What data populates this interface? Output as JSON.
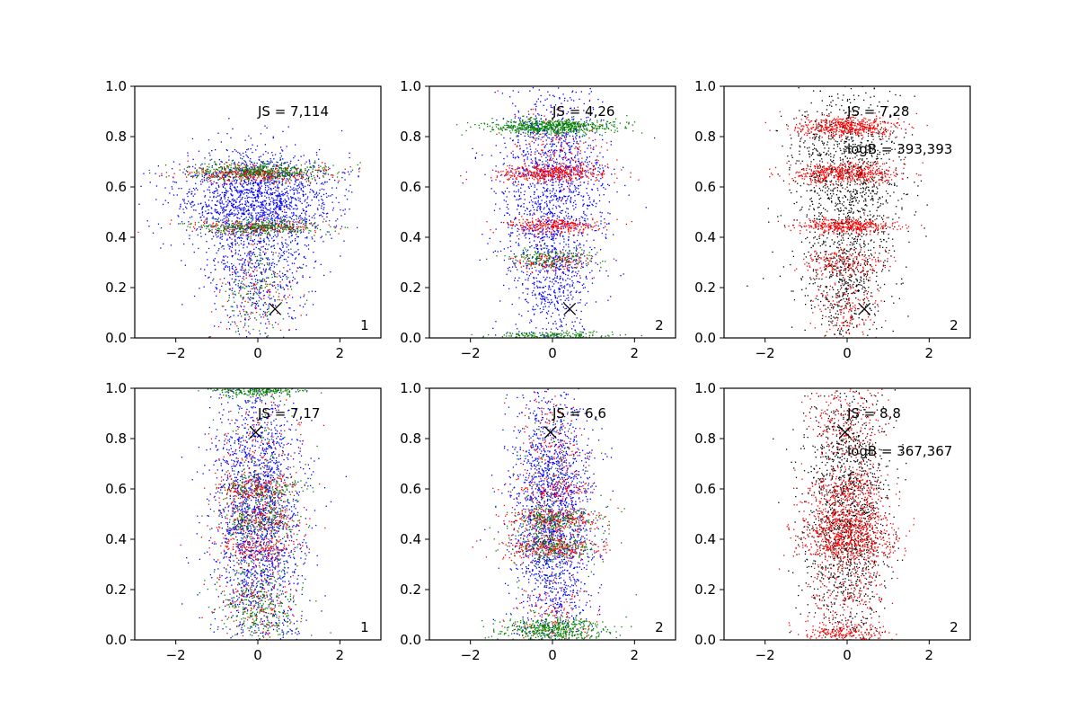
{
  "figure": {
    "background": "#ffffff"
  },
  "chart_data": [
    {
      "type": "scatter",
      "title": "",
      "xlabel": "",
      "ylabel": "",
      "xlim": [
        -3,
        3
      ],
      "ylim": [
        0,
        1
      ],
      "xticks": [
        -2,
        0,
        2
      ],
      "yticks": [
        0.0,
        0.2,
        0.4,
        0.6,
        0.8,
        1.0
      ],
      "xtick_labels": [
        "−2",
        "0",
        "2"
      ],
      "ytick_labels": [
        "0.0",
        "0.2",
        "0.4",
        "0.6",
        "0.8",
        "1.0"
      ],
      "annotation_js": "JS = 7,114",
      "annotation_logb": "",
      "panel_number": "1",
      "marker": {
        "x": 0.42,
        "y": 0.115,
        "symbol": "×"
      },
      "series": [
        {
          "color": "#0000ff",
          "points": 2200,
          "clusters": [
            {
              "y": 0.57,
              "sy": 0.09,
              "sx": 0.95,
              "w": 3
            },
            {
              "y": 0.45,
              "sy": 0.12,
              "sx": 0.9,
              "w": 1
            },
            {
              "y": 0.25,
              "sy": 0.12,
              "sx": 0.6,
              "w": 1
            }
          ]
        },
        {
          "color": "#ff0000",
          "points": 700,
          "clusters": [
            {
              "y": 0.65,
              "sy": 0.018,
              "sx": 0.85,
              "w": 3
            },
            {
              "y": 0.44,
              "sy": 0.015,
              "sx": 0.75,
              "w": 2
            },
            {
              "y": 0.2,
              "sy": 0.1,
              "sx": 0.5,
              "w": 1
            }
          ]
        },
        {
          "color": "#008000",
          "points": 900,
          "clusters": [
            {
              "y": 0.66,
              "sy": 0.018,
              "sx": 0.85,
              "w": 3
            },
            {
              "y": 0.44,
              "sy": 0.015,
              "sx": 0.75,
              "w": 2
            },
            {
              "y": 0.2,
              "sy": 0.1,
              "sx": 0.5,
              "w": 1
            }
          ]
        }
      ]
    },
    {
      "type": "scatter",
      "title": "",
      "xlabel": "",
      "ylabel": "",
      "xlim": [
        -3,
        3
      ],
      "ylim": [
        0,
        1
      ],
      "xticks": [
        -2,
        0,
        2
      ],
      "yticks": [
        0.0,
        0.2,
        0.4,
        0.6,
        0.8,
        1.0
      ],
      "xtick_labels": [
        "−2",
        "0",
        "2"
      ],
      "ytick_labels": [
        "0.0",
        "0.2",
        "0.4",
        "0.6",
        "0.8",
        "1.0"
      ],
      "annotation_js": "JS = 4,26",
      "annotation_logb": "",
      "panel_number": "2",
      "marker": {
        "x": 0.42,
        "y": 0.115,
        "symbol": "×"
      },
      "series": [
        {
          "color": "#0000ff",
          "points": 1800,
          "clusters": [
            {
              "y": 0.6,
              "sy": 0.2,
              "sx": 0.65,
              "w": 3
            },
            {
              "y": 0.2,
              "sy": 0.12,
              "sx": 0.5,
              "w": 1
            }
          ]
        },
        {
          "color": "#ff0000",
          "points": 1000,
          "clusters": [
            {
              "y": 0.655,
              "sy": 0.018,
              "sx": 0.65,
              "w": 3
            },
            {
              "y": 0.445,
              "sy": 0.015,
              "sx": 0.55,
              "w": 2
            },
            {
              "y": 0.3,
              "sy": 0.02,
              "sx": 0.5,
              "w": 1
            },
            {
              "y": 0.75,
              "sy": 0.08,
              "sx": 0.6,
              "w": 1
            }
          ]
        },
        {
          "color": "#008000",
          "points": 1000,
          "clusters": [
            {
              "y": 0.84,
              "sy": 0.015,
              "sx": 0.8,
              "w": 4
            },
            {
              "y": 0.32,
              "sy": 0.02,
              "sx": 0.5,
              "w": 1
            },
            {
              "y": 0.01,
              "sy": 0.008,
              "sx": 0.7,
              "w": 1
            }
          ]
        }
      ]
    },
    {
      "type": "scatter",
      "title": "",
      "xlabel": "",
      "ylabel": "",
      "xlim": [
        -3,
        3
      ],
      "ylim": [
        0,
        1
      ],
      "xticks": [
        -2,
        0,
        2
      ],
      "yticks": [
        0.0,
        0.2,
        0.4,
        0.6,
        0.8,
        1.0
      ],
      "xtick_labels": [
        "−2",
        "0",
        "2"
      ],
      "ytick_labels": [
        "0.0",
        "0.2",
        "0.4",
        "0.6",
        "0.8",
        "1.0"
      ],
      "annotation_js": "JS = 7,28",
      "annotation_logb": "logB = 393,393",
      "panel_number": "2",
      "marker": {
        "x": 0.42,
        "y": 0.115,
        "symbol": "×"
      },
      "series": [
        {
          "color": "#000000",
          "points": 1600,
          "clusters": [
            {
              "y": 0.62,
              "sy": 0.2,
              "sx": 0.7,
              "w": 3
            },
            {
              "y": 0.2,
              "sy": 0.12,
              "sx": 0.5,
              "w": 1
            }
          ]
        },
        {
          "color": "#ff0000",
          "points": 1700,
          "clusters": [
            {
              "y": 0.84,
              "sy": 0.02,
              "sx": 0.65,
              "w": 3
            },
            {
              "y": 0.655,
              "sy": 0.02,
              "sx": 0.65,
              "w": 3
            },
            {
              "y": 0.445,
              "sy": 0.015,
              "sx": 0.55,
              "w": 2
            },
            {
              "y": 0.3,
              "sy": 0.03,
              "sx": 0.5,
              "w": 1
            },
            {
              "y": 0.1,
              "sy": 0.08,
              "sx": 0.4,
              "w": 1
            }
          ]
        }
      ]
    },
    {
      "type": "scatter",
      "title": "",
      "xlabel": "",
      "ylabel": "",
      "xlim": [
        -3,
        3
      ],
      "ylim": [
        0,
        1
      ],
      "xticks": [
        -2,
        0,
        2
      ],
      "yticks": [
        0.0,
        0.2,
        0.4,
        0.6,
        0.8,
        1.0
      ],
      "xtick_labels": [
        "−2",
        "0",
        "2"
      ],
      "ytick_labels": [
        "0.0",
        "0.2",
        "0.4",
        "0.6",
        "0.8",
        "1.0"
      ],
      "annotation_js": "JS = 7,17",
      "annotation_logb": "",
      "panel_number": "1",
      "marker": {
        "x": -0.05,
        "y": 0.825,
        "symbol": "×"
      },
      "series": [
        {
          "color": "#0000ff",
          "points": 2000,
          "clusters": [
            {
              "y": 0.5,
              "sy": 0.28,
              "sx": 0.55,
              "w": 1
            }
          ]
        },
        {
          "color": "#ff0000",
          "points": 900,
          "clusters": [
            {
              "y": 0.6,
              "sy": 0.03,
              "sx": 0.5,
              "w": 1
            },
            {
              "y": 0.48,
              "sy": 0.03,
              "sx": 0.5,
              "w": 1
            },
            {
              "y": 0.37,
              "sy": 0.03,
              "sx": 0.5,
              "w": 1
            },
            {
              "y": 0.7,
              "sy": 0.15,
              "sx": 0.5,
              "w": 1
            },
            {
              "y": 0.15,
              "sy": 0.1,
              "sx": 0.5,
              "w": 1
            }
          ]
        },
        {
          "color": "#008000",
          "points": 1000,
          "clusters": [
            {
              "y": 0.99,
              "sy": 0.012,
              "sx": 0.55,
              "w": 2
            },
            {
              "y": 0.6,
              "sy": 0.03,
              "sx": 0.5,
              "w": 1
            },
            {
              "y": 0.48,
              "sy": 0.03,
              "sx": 0.5,
              "w": 1
            },
            {
              "y": 0.1,
              "sy": 0.08,
              "sx": 0.5,
              "w": 2
            },
            {
              "y": 0.45,
              "sy": 0.25,
              "sx": 0.5,
              "w": 2
            }
          ]
        }
      ]
    },
    {
      "type": "scatter",
      "title": "",
      "xlabel": "",
      "ylabel": "",
      "xlim": [
        -3,
        3
      ],
      "ylim": [
        0,
        1
      ],
      "xticks": [
        -2,
        0,
        2
      ],
      "yticks": [
        0.0,
        0.2,
        0.4,
        0.6,
        0.8,
        1.0
      ],
      "xtick_labels": [
        "−2",
        "0",
        "2"
      ],
      "ytick_labels": [
        "0.0",
        "0.2",
        "0.4",
        "0.6",
        "0.8",
        "1.0"
      ],
      "annotation_js": "JS = 6,6",
      "annotation_logb": "",
      "panel_number": "2",
      "marker": {
        "x": -0.05,
        "y": 0.825,
        "symbol": "×"
      },
      "series": [
        {
          "color": "#0000ff",
          "points": 1900,
          "clusters": [
            {
              "y": 0.5,
              "sy": 0.28,
              "sx": 0.5,
              "w": 1
            }
          ]
        },
        {
          "color": "#ff0000",
          "points": 1000,
          "clusters": [
            {
              "y": 0.6,
              "sy": 0.03,
              "sx": 0.5,
              "w": 1
            },
            {
              "y": 0.48,
              "sy": 0.025,
              "sx": 0.55,
              "w": 2
            },
            {
              "y": 0.37,
              "sy": 0.025,
              "sx": 0.55,
              "w": 2
            },
            {
              "y": 0.8,
              "sy": 0.1,
              "sx": 0.45,
              "w": 1
            },
            {
              "y": 0.1,
              "sy": 0.08,
              "sx": 0.5,
              "w": 1
            }
          ]
        },
        {
          "color": "#008000",
          "points": 1000,
          "clusters": [
            {
              "y": 0.04,
              "sy": 0.025,
              "sx": 0.65,
              "w": 3
            },
            {
              "y": 0.48,
              "sy": 0.025,
              "sx": 0.55,
              "w": 1
            },
            {
              "y": 0.37,
              "sy": 0.025,
              "sx": 0.55,
              "w": 1
            },
            {
              "y": 0.5,
              "sy": 0.25,
              "sx": 0.5,
              "w": 1
            }
          ]
        }
      ]
    },
    {
      "type": "scatter",
      "title": "",
      "xlabel": "",
      "ylabel": "",
      "xlim": [
        -3,
        3
      ],
      "ylim": [
        0,
        1
      ],
      "xticks": [
        -2,
        0,
        2
      ],
      "yticks": [
        0.0,
        0.2,
        0.4,
        0.6,
        0.8,
        1.0
      ],
      "xtick_labels": [
        "−2",
        "0",
        "2"
      ],
      "ytick_labels": [
        "0.0",
        "0.2",
        "0.4",
        "0.6",
        "0.8",
        "1.0"
      ],
      "annotation_js": "JS = 8,8",
      "annotation_logb": "logB = 367,367",
      "panel_number": "2",
      "marker": {
        "x": -0.05,
        "y": 0.825,
        "symbol": "×"
      },
      "series": [
        {
          "color": "#000000",
          "points": 1500,
          "clusters": [
            {
              "y": 0.5,
              "sy": 0.28,
              "sx": 0.5,
              "w": 1
            }
          ]
        },
        {
          "color": "#ff0000",
          "points": 1700,
          "clusters": [
            {
              "y": 0.47,
              "sy": 0.05,
              "sx": 0.55,
              "w": 2
            },
            {
              "y": 0.38,
              "sy": 0.04,
              "sx": 0.55,
              "w": 2
            },
            {
              "y": 0.6,
              "sy": 0.04,
              "sx": 0.5,
              "w": 1
            },
            {
              "y": 0.03,
              "sy": 0.02,
              "sx": 0.55,
              "w": 1
            },
            {
              "y": 0.85,
              "sy": 0.1,
              "sx": 0.45,
              "w": 1
            },
            {
              "y": 0.2,
              "sy": 0.1,
              "sx": 0.5,
              "w": 1
            }
          ]
        }
      ]
    }
  ]
}
